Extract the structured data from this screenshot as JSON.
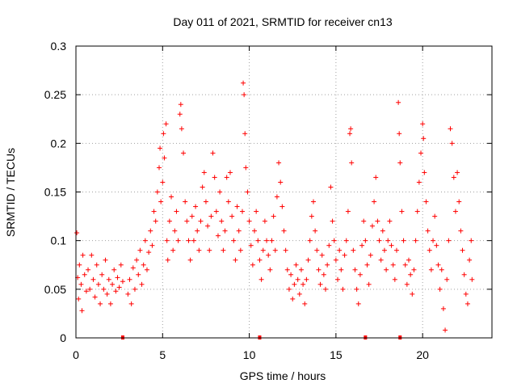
{
  "chart_data": {
    "type": "scatter",
    "title": "Day 011 of 2021, SRMTID for receiver cn13",
    "xlabel": "GPS time / hours",
    "ylabel": "SRMTID / TECUs",
    "xlim": [
      0,
      24
    ],
    "ylim": [
      0,
      0.3
    ],
    "x_ticks": [
      0,
      5,
      10,
      15,
      20
    ],
    "y_ticks": [
      0,
      0.05,
      0.1,
      0.15,
      0.2,
      0.25,
      0.3
    ],
    "x_tick_labels": [
      "0",
      "5",
      "10",
      "15",
      "20"
    ],
    "y_tick_labels": [
      "0",
      "0.05",
      "0.1",
      "0.15",
      "0.2",
      "0.25",
      "0.3"
    ],
    "grid": true,
    "marker": "+",
    "color": "#ff0000",
    "series": [
      {
        "name": "SRMTID",
        "points": [
          [
            0.05,
            0.108
          ],
          [
            0.1,
            0.062
          ],
          [
            0.15,
            0.04
          ],
          [
            0.2,
            0.075
          ],
          [
            0.3,
            0.055
          ],
          [
            0.35,
            0.028
          ],
          [
            0.4,
            0.085
          ],
          [
            0.5,
            0.065
          ],
          [
            0.6,
            0.048
          ],
          [
            0.7,
            0.07
          ],
          [
            0.8,
            0.05
          ],
          [
            0.9,
            0.085
          ],
          [
            1.0,
            0.06
          ],
          [
            1.1,
            0.042
          ],
          [
            1.2,
            0.075
          ],
          [
            1.3,
            0.055
          ],
          [
            1.4,
            0.035
          ],
          [
            1.5,
            0.065
          ],
          [
            1.6,
            0.05
          ],
          [
            1.7,
            0.08
          ],
          [
            1.8,
            0.045
          ],
          [
            1.9,
            0.06
          ],
          [
            2.0,
            0.035
          ],
          [
            2.1,
            0.055
          ],
          [
            2.2,
            0.07
          ],
          [
            2.3,
            0.048
          ],
          [
            2.4,
            0.062
          ],
          [
            2.5,
            0.052
          ],
          [
            2.6,
            0.075
          ],
          [
            2.7,
            0.058
          ],
          [
            3.0,
            0.045
          ],
          [
            3.1,
            0.06
          ],
          [
            3.2,
            0.035
          ],
          [
            3.3,
            0.072
          ],
          [
            3.4,
            0.05
          ],
          [
            3.5,
            0.08
          ],
          [
            3.6,
            0.065
          ],
          [
            3.7,
            0.09
          ],
          [
            3.8,
            0.055
          ],
          [
            3.9,
            0.075
          ],
          [
            4.0,
            0.1
          ],
          [
            4.1,
            0.07
          ],
          [
            4.2,
            0.088
          ],
          [
            4.3,
            0.11
          ],
          [
            4.4,
            0.095
          ],
          [
            4.5,
            0.13
          ],
          [
            4.6,
            0.12
          ],
          [
            4.7,
            0.15
          ],
          [
            4.8,
            0.175
          ],
          [
            4.85,
            0.195
          ],
          [
            4.9,
            0.14
          ],
          [
            5.0,
            0.16
          ],
          [
            5.05,
            0.21
          ],
          [
            5.1,
            0.185
          ],
          [
            5.2,
            0.22
          ],
          [
            5.25,
            0.1
          ],
          [
            5.3,
            0.08
          ],
          [
            5.4,
            0.12
          ],
          [
            5.5,
            0.145
          ],
          [
            5.6,
            0.09
          ],
          [
            5.7,
            0.11
          ],
          [
            5.8,
            0.13
          ],
          [
            5.9,
            0.1
          ],
          [
            6.0,
            0.23
          ],
          [
            6.05,
            0.24
          ],
          [
            6.1,
            0.215
          ],
          [
            6.2,
            0.19
          ],
          [
            6.3,
            0.14
          ],
          [
            6.4,
            0.12
          ],
          [
            6.5,
            0.1
          ],
          [
            6.6,
            0.08
          ],
          [
            6.7,
            0.125
          ],
          [
            6.8,
            0.1
          ],
          [
            6.9,
            0.135
          ],
          [
            7.0,
            0.11
          ],
          [
            7.1,
            0.09
          ],
          [
            7.2,
            0.12
          ],
          [
            7.3,
            0.155
          ],
          [
            7.4,
            0.17
          ],
          [
            7.5,
            0.14
          ],
          [
            7.6,
            0.115
          ],
          [
            7.7,
            0.09
          ],
          [
            7.8,
            0.125
          ],
          [
            7.9,
            0.19
          ],
          [
            8.0,
            0.165
          ],
          [
            8.1,
            0.13
          ],
          [
            8.2,
            0.105
          ],
          [
            8.3,
            0.15
          ],
          [
            8.4,
            0.12
          ],
          [
            8.5,
            0.09
          ],
          [
            8.6,
            0.11
          ],
          [
            8.7,
            0.165
          ],
          [
            8.8,
            0.14
          ],
          [
            8.9,
            0.17
          ],
          [
            9.0,
            0.125
          ],
          [
            9.1,
            0.1
          ],
          [
            9.2,
            0.08
          ],
          [
            9.3,
            0.135
          ],
          [
            9.4,
            0.11
          ],
          [
            9.5,
            0.09
          ],
          [
            9.6,
            0.13
          ],
          [
            9.65,
            0.262
          ],
          [
            9.7,
            0.25
          ],
          [
            9.75,
            0.21
          ],
          [
            9.8,
            0.175
          ],
          [
            9.9,
            0.15
          ],
          [
            10.0,
            0.12
          ],
          [
            10.1,
            0.095
          ],
          [
            10.2,
            0.075
          ],
          [
            10.3,
            0.11
          ],
          [
            10.4,
            0.13
          ],
          [
            10.5,
            0.1
          ],
          [
            10.6,
            0.08
          ],
          [
            10.7,
            0.06
          ],
          [
            10.8,
            0.09
          ],
          [
            10.9,
            0.12
          ],
          [
            11.0,
            0.1
          ],
          [
            11.1,
            0.085
          ],
          [
            11.2,
            0.07
          ],
          [
            11.3,
            0.1
          ],
          [
            11.4,
            0.125
          ],
          [
            11.5,
            0.09
          ],
          [
            11.6,
            0.145
          ],
          [
            11.7,
            0.18
          ],
          [
            11.8,
            0.16
          ],
          [
            11.9,
            0.135
          ],
          [
            12.0,
            0.11
          ],
          [
            12.1,
            0.09
          ],
          [
            12.2,
            0.07
          ],
          [
            12.3,
            0.05
          ],
          [
            12.4,
            0.065
          ],
          [
            12.5,
            0.04
          ],
          [
            12.6,
            0.055
          ],
          [
            12.7,
            0.075
          ],
          [
            12.8,
            0.06
          ],
          [
            12.9,
            0.045
          ],
          [
            13.0,
            0.07
          ],
          [
            13.1,
            0.055
          ],
          [
            13.2,
            0.035
          ],
          [
            13.3,
            0.06
          ],
          [
            13.4,
            0.08
          ],
          [
            13.5,
            0.1
          ],
          [
            13.6,
            0.125
          ],
          [
            13.7,
            0.14
          ],
          [
            13.8,
            0.11
          ],
          [
            13.9,
            0.09
          ],
          [
            14.0,
            0.07
          ],
          [
            14.1,
            0.055
          ],
          [
            14.2,
            0.085
          ],
          [
            14.3,
            0.065
          ],
          [
            14.4,
            0.05
          ],
          [
            14.5,
            0.075
          ],
          [
            14.6,
            0.095
          ],
          [
            14.7,
            0.155
          ],
          [
            14.8,
            0.12
          ],
          [
            14.9,
            0.1
          ],
          [
            15.0,
            0.08
          ],
          [
            15.1,
            0.06
          ],
          [
            15.2,
            0.09
          ],
          [
            15.3,
            0.07
          ],
          [
            15.4,
            0.05
          ],
          [
            15.5,
            0.085
          ],
          [
            15.6,
            0.1
          ],
          [
            15.7,
            0.13
          ],
          [
            15.8,
            0.21
          ],
          [
            15.85,
            0.215
          ],
          [
            15.9,
            0.18
          ],
          [
            16.0,
            0.09
          ],
          [
            16.1,
            0.07
          ],
          [
            16.2,
            0.05
          ],
          [
            16.3,
            0.035
          ],
          [
            16.4,
            0.065
          ],
          [
            16.5,
            0.095
          ],
          [
            16.6,
            0.12
          ],
          [
            16.7,
            0.1
          ],
          [
            16.8,
            0.075
          ],
          [
            16.9,
            0.055
          ],
          [
            17.0,
            0.085
          ],
          [
            17.1,
            0.115
          ],
          [
            17.2,
            0.14
          ],
          [
            17.3,
            0.165
          ],
          [
            17.4,
            0.12
          ],
          [
            17.5,
            0.1
          ],
          [
            17.6,
            0.08
          ],
          [
            17.7,
            0.11
          ],
          [
            17.8,
            0.09
          ],
          [
            17.9,
            0.07
          ],
          [
            18.0,
            0.1
          ],
          [
            18.1,
            0.12
          ],
          [
            18.2,
            0.095
          ],
          [
            18.3,
            0.075
          ],
          [
            18.4,
            0.06
          ],
          [
            18.5,
            0.09
          ],
          [
            18.6,
            0.242
          ],
          [
            18.65,
            0.21
          ],
          [
            18.7,
            0.18
          ],
          [
            18.8,
            0.13
          ],
          [
            18.9,
            0.1
          ],
          [
            19.0,
            0.075
          ],
          [
            19.1,
            0.055
          ],
          [
            19.2,
            0.08
          ],
          [
            19.3,
            0.065
          ],
          [
            19.4,
            0.045
          ],
          [
            19.5,
            0.07
          ],
          [
            19.6,
            0.1
          ],
          [
            19.7,
            0.13
          ],
          [
            19.8,
            0.16
          ],
          [
            19.9,
            0.19
          ],
          [
            20.0,
            0.22
          ],
          [
            20.05,
            0.205
          ],
          [
            20.1,
            0.17
          ],
          [
            20.2,
            0.14
          ],
          [
            20.3,
            0.11
          ],
          [
            20.4,
            0.09
          ],
          [
            20.5,
            0.07
          ],
          [
            20.6,
            0.1
          ],
          [
            20.7,
            0.125
          ],
          [
            20.8,
            0.095
          ],
          [
            20.9,
            0.075
          ],
          [
            21.0,
            0.05
          ],
          [
            21.1,
            0.07
          ],
          [
            21.2,
            0.03
          ],
          [
            21.3,
            0.008
          ],
          [
            21.4,
            0.06
          ],
          [
            21.5,
            0.1
          ],
          [
            21.6,
            0.215
          ],
          [
            21.7,
            0.2
          ],
          [
            21.8,
            0.165
          ],
          [
            21.9,
            0.13
          ],
          [
            22.0,
            0.17
          ],
          [
            22.1,
            0.14
          ],
          [
            22.2,
            0.11
          ],
          [
            22.3,
            0.09
          ],
          [
            22.4,
            0.065
          ],
          [
            22.5,
            0.045
          ],
          [
            22.6,
            0.035
          ],
          [
            22.7,
            0.08
          ],
          [
            22.8,
            0.1
          ],
          [
            22.85,
            0.06
          ]
        ]
      }
    ],
    "x_axis_marks": [
      2.7,
      10.6,
      16.7,
      18.7
    ]
  }
}
